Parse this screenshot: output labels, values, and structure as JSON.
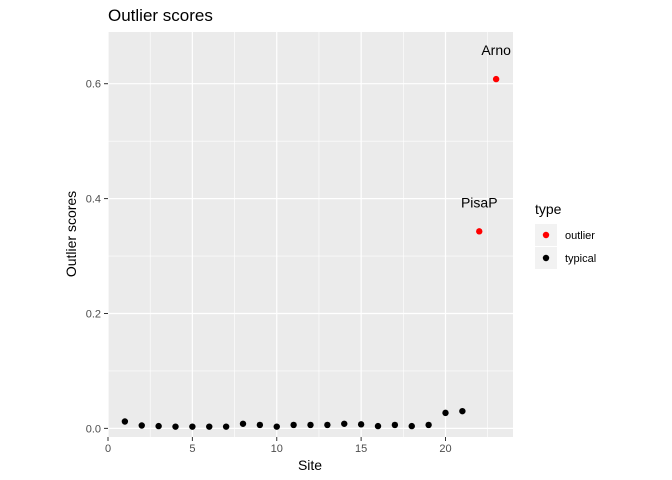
{
  "chart_data": {
    "type": "scatter",
    "title": "Outlier scores",
    "xlabel": "Site",
    "ylabel": "Outlier scores",
    "xlim": [
      0,
      24
    ],
    "ylim": [
      -0.015,
      0.69
    ],
    "x_ticks": [
      0,
      5,
      10,
      15,
      20
    ],
    "x_tick_labels": [
      "0",
      "5",
      "10",
      "15",
      "20"
    ],
    "y_ticks": [
      0.0,
      0.2,
      0.4,
      0.6
    ],
    "y_tick_labels": [
      "0.0",
      "0.2",
      "0.4",
      "0.6"
    ],
    "grid": true,
    "legend": {
      "title": "type",
      "placement": "right",
      "entries": [
        {
          "name": "outlier",
          "color": "#ff0000"
        },
        {
          "name": "typical",
          "color": "#000000"
        }
      ]
    },
    "series": [
      {
        "name": "typical",
        "color": "#000000",
        "x": [
          1,
          2,
          3,
          4,
          5,
          6,
          7,
          8,
          9,
          10,
          11,
          12,
          13,
          14,
          15,
          16,
          17,
          18,
          19,
          20,
          21
        ],
        "y": [
          0.012,
          0.005,
          0.004,
          0.003,
          0.003,
          0.003,
          0.003,
          0.008,
          0.006,
          0.003,
          0.006,
          0.006,
          0.006,
          0.008,
          0.007,
          0.004,
          0.006,
          0.004,
          0.006,
          0.027,
          0.03
        ]
      },
      {
        "name": "outlier",
        "color": "#ff0000",
        "x": [
          22,
          23
        ],
        "y": [
          0.343,
          0.608
        ]
      }
    ],
    "annotations": [
      {
        "text": "PisaP",
        "x": 22,
        "y": 0.343
      },
      {
        "text": "Arno",
        "x": 23,
        "y": 0.608
      }
    ],
    "panel_background": "#ebebeb",
    "grid_color": "#ffffff"
  }
}
